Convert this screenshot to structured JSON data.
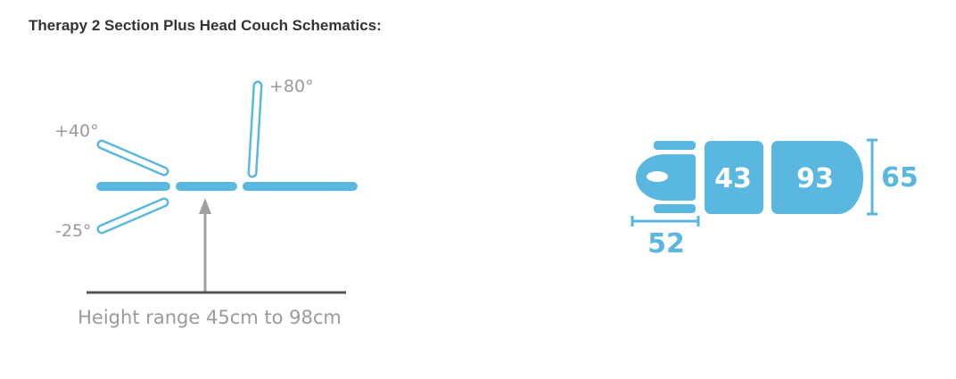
{
  "title": "Therapy 2 Section Plus Head Couch Schematics:",
  "side_view": {
    "angle_up_head": "+40°",
    "angle_down_head": "-25°",
    "angle_back": "+80°",
    "height_caption": "Height range 45cm to 98cm"
  },
  "top_view": {
    "middle_section": "43",
    "back_section": "93",
    "width": "65",
    "head_length": "52"
  },
  "colors": {
    "accent": "#5ab7df",
    "text_gray": "#9a9a9a",
    "ground": "#555555"
  }
}
